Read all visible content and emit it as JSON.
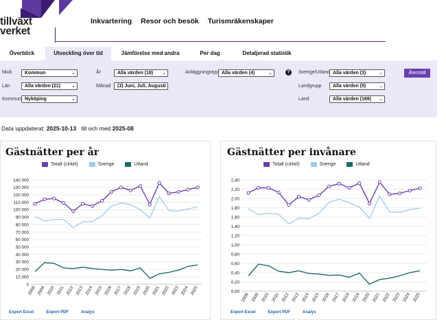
{
  "logo": {
    "line1": "tillväxt",
    "line2": "verket"
  },
  "nav": [
    "Inkvartering",
    "Resor och besök",
    "Turismräkenskaper"
  ],
  "tabs": [
    "Överblick",
    "Utveckling över tid",
    "Jämförelse med andra",
    "Per dag",
    "Detaljerad statistik"
  ],
  "active_tab": "Utveckling över tid",
  "filters": {
    "niva": {
      "label": "Nivå",
      "value": "Kommun"
    },
    "lan": {
      "label": "Län",
      "value": "Alla värden (21)"
    },
    "kommun": {
      "label": "Kommun",
      "value": "Nyköping"
    },
    "ar": {
      "label": "År",
      "value": "Alla värden (18)"
    },
    "manad": {
      "label": "Månad",
      "value": "(3) Juni, Juli, Augusti"
    },
    "anlaggningstyp": {
      "label": "Anläggningstyp",
      "value": "Alla värden (4)"
    },
    "sverige_utland": {
      "label": "Sverige/Utland",
      "value": "Alla värden (3)"
    },
    "landgrupp": {
      "label": "Landgrupp",
      "value": "Alla värden (5)"
    },
    "land": {
      "label": "Land",
      "value": "Alla värden (169)"
    },
    "help": "?",
    "reset": "Återställ"
  },
  "updated": {
    "prefix": "Data uppdaterat:",
    "date": "2025-10-13",
    "middle": "till och med",
    "period": "2025-08"
  },
  "exports": [
    "Export Excel",
    "Export PDF",
    "Analys"
  ],
  "colors": {
    "total": "#6b3fa8",
    "sverige": "#9fcbea",
    "utland": "#1c6b69",
    "accent": "#6a3fb0"
  },
  "chart_data": [
    {
      "type": "line",
      "title": "Gästnätter per år",
      "x": [
        "2008",
        "2009",
        "2010",
        "2011",
        "2012",
        "2013",
        "2014",
        "2015",
        "2016",
        "2017",
        "2018",
        "2019",
        "2020",
        "2021",
        "2022",
        "2023",
        "2024",
        "2025"
      ],
      "ylim": [
        0,
        140000
      ],
      "yticks": [
        "0",
        "10 000",
        "20 000",
        "30 000",
        "40 000",
        "50 000",
        "60 000",
        "70 000",
        "80 000",
        "90 000",
        "100 000",
        "110 000",
        "120 000",
        "130 000",
        "140 000"
      ],
      "series": [
        {
          "name": "Totalt (cirkel)",
          "values": [
            108000,
            114000,
            115000,
            109000,
            98000,
            108000,
            105000,
            112000,
            124000,
            130000,
            126000,
            132000,
            107000,
            136000,
            122000,
            124000,
            127000,
            130000
          ]
        },
        {
          "name": "Sverige",
          "values": [
            91000,
            85000,
            87000,
            87000,
            76000,
            84000,
            84000,
            92000,
            105000,
            109000,
            107000,
            100000,
            89000,
            118000,
            99000,
            98000,
            101000,
            104000
          ]
        },
        {
          "name": "Utland",
          "values": [
            17000,
            29000,
            28000,
            22000,
            21000,
            23000,
            21000,
            20000,
            19000,
            20000,
            18000,
            22000,
            8000,
            14000,
            16000,
            19000,
            24000,
            26000
          ]
        }
      ],
      "grid": true,
      "legend": "top"
    },
    {
      "type": "line",
      "title": "Gästnätter per invånare",
      "x": [
        "2008",
        "2009",
        "2010",
        "2011",
        "2012",
        "2013",
        "2014",
        "2015",
        "2016",
        "2017",
        "2018",
        "2019",
        "2020",
        "2021",
        "2022",
        "2023",
        "2024",
        "2025"
      ],
      "ylim": [
        0,
        2.4
      ],
      "yticks": [
        "0,00",
        "0,20",
        "0,40",
        "0,60",
        "0,80",
        "1,00",
        "1,20",
        "1,40",
        "1,60",
        "1,80",
        "2,00",
        "2,20",
        "2,40"
      ],
      "series": [
        {
          "name": "Totalt (cirkel)",
          "values": [
            2.12,
            2.23,
            2.23,
            2.13,
            1.86,
            2.04,
            1.97,
            2.07,
            2.26,
            2.32,
            2.23,
            2.33,
            1.89,
            2.35,
            2.09,
            2.11,
            2.17,
            2.22
          ]
        },
        {
          "name": "Sverige",
          "values": [
            1.78,
            1.65,
            1.68,
            1.66,
            1.45,
            1.58,
            1.56,
            1.68,
            1.92,
            1.98,
            1.91,
            1.81,
            1.57,
            2.05,
            1.71,
            1.7,
            1.76,
            1.79
          ]
        },
        {
          "name": "Utland",
          "values": [
            0.33,
            0.58,
            0.55,
            0.43,
            0.4,
            0.44,
            0.38,
            0.37,
            0.34,
            0.35,
            0.3,
            0.39,
            0.15,
            0.25,
            0.28,
            0.33,
            0.4,
            0.44
          ]
        }
      ],
      "grid": true,
      "legend": "top"
    }
  ]
}
